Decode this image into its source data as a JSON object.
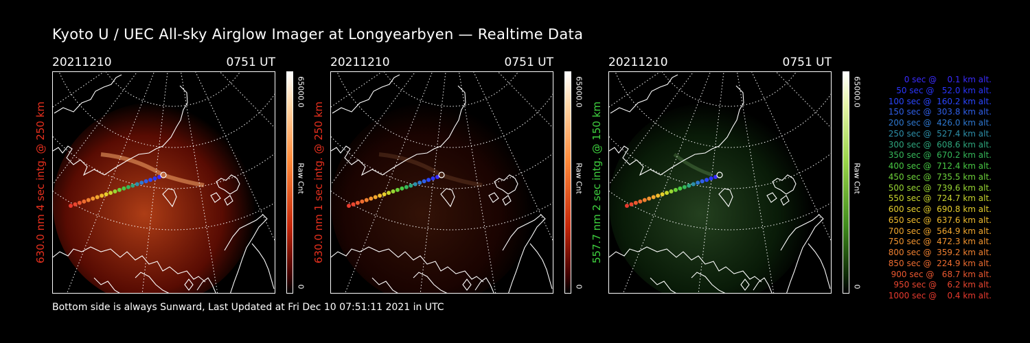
{
  "title": "Kyoto U / UEC All-sky Airglow Imager at Longyearbyen — Realtime Data",
  "panels": [
    {
      "date": "20211210",
      "time": "0751 UT",
      "label": "630.0 nm 4 sec intg. @ 250 km",
      "label_color": "#e8301e",
      "cbar_max": "65000.0",
      "cbar_min": "0",
      "cbar_label": "Raw Cnt",
      "tint": "red",
      "glow": 0.75
    },
    {
      "date": "20211210",
      "time": "0751 UT",
      "label": "630.0 nm 1 sec intg. @ 250 km",
      "label_color": "#e8301e",
      "cbar_max": "65000.0",
      "cbar_min": "0",
      "cbar_label": "Raw Cnt",
      "tint": "red",
      "glow": 0.22
    },
    {
      "date": "20211210",
      "time": "0751 UT",
      "label": "557.7 nm 2 sec intg. @ 150 km",
      "label_color": "#3fd23f",
      "cbar_max": "65000.0",
      "cbar_min": "0",
      "cbar_label": "Raw Cnt",
      "tint": "green",
      "glow": 0.35
    }
  ],
  "legend": [
    {
      "text": "0 sec @    0.1 km alt.",
      "color": "#3a2bff"
    },
    {
      "text": "50 sec @   52.0 km alt.",
      "color": "#2a35ff"
    },
    {
      "text": "100 sec @  160.2 km alt.",
      "color": "#2a46ff"
    },
    {
      "text": "150 sec @  303.8 km alt.",
      "color": "#2f5fe8"
    },
    {
      "text": "200 sec @  426.0 km alt.",
      "color": "#2e78d0"
    },
    {
      "text": "250 sec @  527.4 km alt.",
      "color": "#2d8fa9"
    },
    {
      "text": "300 sec @  608.6 km alt.",
      "color": "#2ea67d"
    },
    {
      "text": "350 sec @  670.2 km alt.",
      "color": "#35b85a"
    },
    {
      "text": "400 sec @  712.4 km alt.",
      "color": "#48c944"
    },
    {
      "text": "450 sec @  735.5 km alt.",
      "color": "#6dd23a"
    },
    {
      "text": "500 sec @  739.6 km alt.",
      "color": "#98d733"
    },
    {
      "text": "550 sec @  724.7 km alt.",
      "color": "#c8d62e"
    },
    {
      "text": "600 sec @  690.8 km alt.",
      "color": "#e6cf2d"
    },
    {
      "text": "650 sec @  637.6 km alt.",
      "color": "#f0bb2d"
    },
    {
      "text": "700 sec @  564.9 km alt.",
      "color": "#f2a72e"
    },
    {
      "text": "750 sec @  472.3 km alt.",
      "color": "#f2942f"
    },
    {
      "text": "800 sec @  359.2 km alt.",
      "color": "#f08030"
    },
    {
      "text": "850 sec @  224.9 km alt.",
      "color": "#ee6c30"
    },
    {
      "text": "900 sec @   68.7 km alt.",
      "color": "#ec5830"
    },
    {
      "text": "950 sec @    6.2 km alt.",
      "color": "#ea4630"
    },
    {
      "text": "1000 sec @    0.4 km alt.",
      "color": "#e83a2e"
    }
  ],
  "footer": "Bottom side is always Sunward, Last Updated at Fri Dec 10 07:51:11 2021 in UTC"
}
